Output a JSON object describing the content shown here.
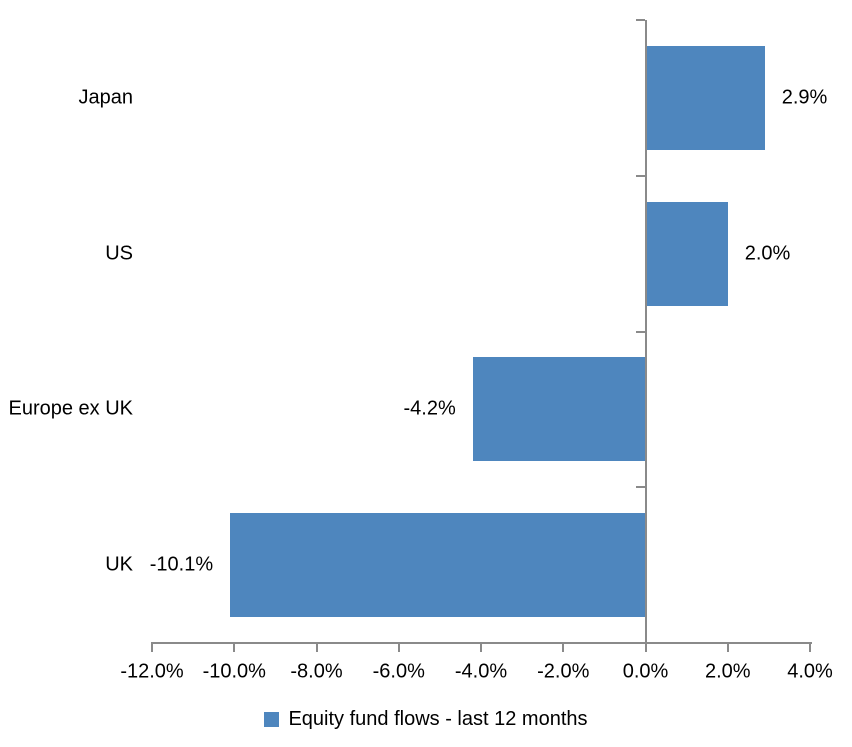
{
  "chart_data": {
    "type": "bar",
    "orientation": "horizontal",
    "title": "",
    "categories": [
      "Japan",
      "US",
      "Europe ex UK",
      "UK"
    ],
    "series": [
      {
        "name": "Equity fund flows - last 12 months",
        "values": [
          2.9,
          2.0,
          -4.2,
          -10.1
        ]
      }
    ],
    "data_labels": [
      "2.9%",
      "2.0%",
      "-4.2%",
      "-10.1%"
    ],
    "xlabel": "",
    "ylabel": "",
    "xlim": [
      -12,
      4
    ],
    "x_ticks": [
      -12,
      -10,
      -8,
      -6,
      -4,
      -2,
      0,
      2,
      4
    ],
    "x_tick_labels": [
      "-12.0%",
      "-10.0%",
      "-8.0%",
      "-6.0%",
      "-4.0%",
      "-2.0%",
      "0.0%",
      "2.0%",
      "4.0%"
    ],
    "grid": false,
    "legend": {
      "position": "bottom",
      "entries": [
        "Equity fund flows - last 12 months"
      ]
    },
    "colors": {
      "bar": "#4E86BE",
      "axis": "#8A8A8A",
      "text": "#000000",
      "background": "#FFFFFF"
    }
  }
}
